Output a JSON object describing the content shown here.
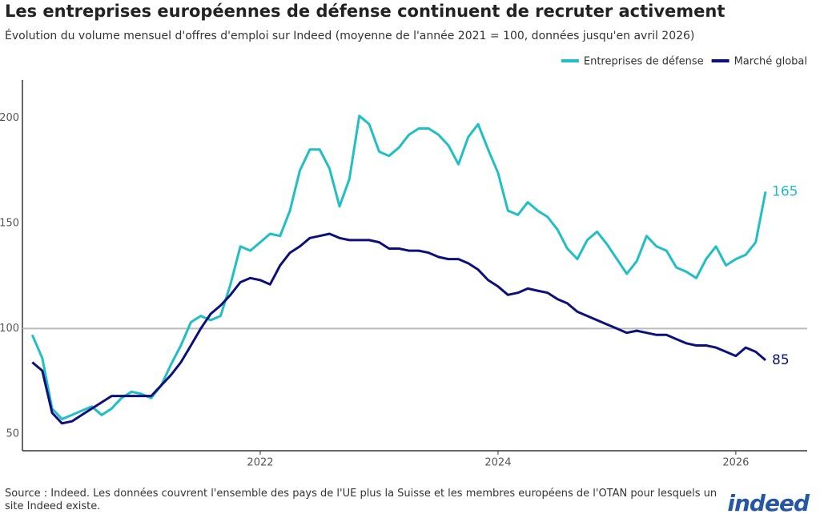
{
  "chart_data": {
    "type": "line",
    "title": "Les entreprises européennes de défense continuent de recruter activement",
    "subtitle": "Évolution du volume mensuel d'offres d'emploi sur Indeed (moyenne de l'année 2021 = 100, données jusqu'en avril 2026)",
    "source": "Source : Indeed. Les données couvrent l'ensemble des pays de l'UE plus la Suisse et les membres européens de l'OTAN pour lesquels un site Indeed existe.",
    "logo": "indeed",
    "x": [
      2020.083,
      2020.167,
      2020.25,
      2020.333,
      2020.417,
      2020.5,
      2020.583,
      2020.667,
      2020.75,
      2020.833,
      2020.917,
      2021.0,
      2021.083,
      2021.167,
      2021.25,
      2021.333,
      2021.417,
      2021.5,
      2021.583,
      2021.667,
      2021.75,
      2021.833,
      2021.917,
      2022.0,
      2022.083,
      2022.167,
      2022.25,
      2022.333,
      2022.417,
      2022.5,
      2022.583,
      2022.667,
      2022.75,
      2022.833,
      2022.917,
      2023.0,
      2023.083,
      2023.167,
      2023.25,
      2023.333,
      2023.417,
      2023.5,
      2023.583,
      2023.667,
      2023.75,
      2023.833,
      2023.917,
      2024.0,
      2024.083,
      2024.167,
      2024.25,
      2024.333,
      2024.417,
      2024.5,
      2024.583,
      2024.667,
      2024.75,
      2024.833,
      2024.917,
      2025.0,
      2025.083,
      2025.167,
      2025.25,
      2025.333,
      2025.417,
      2025.5,
      2025.583,
      2025.667,
      2025.75,
      2025.833,
      2025.917,
      2026.0,
      2026.083,
      2026.167,
      2026.25
    ],
    "series": [
      {
        "name": "Entreprises de défense",
        "color": "#1fbfc4",
        "values": [
          97,
          86,
          62,
          57,
          59,
          61,
          63,
          59,
          62,
          67,
          70,
          69,
          67,
          73,
          83,
          92,
          103,
          106,
          104,
          106,
          121,
          139,
          137,
          141,
          145,
          144,
          156,
          175,
          185,
          185,
          176,
          158,
          171,
          201,
          197,
          184,
          182,
          186,
          192,
          195,
          195,
          192,
          187,
          178,
          191,
          197,
          185,
          174,
          156,
          154,
          160,
          156,
          153,
          147,
          138,
          133,
          142,
          146,
          140,
          133,
          126,
          132,
          144,
          139,
          137,
          129,
          127,
          124,
          133,
          139,
          130,
          133,
          135,
          141,
          165
        ]
      },
      {
        "name": "Marché global",
        "color": "#0d0f7a",
        "values": [
          84,
          80,
          60,
          55,
          56,
          59,
          62,
          65,
          68,
          68,
          68,
          68,
          68,
          73,
          78,
          84,
          92,
          100,
          107,
          111,
          116,
          122,
          124,
          123,
          121,
          130,
          136,
          139,
          143,
          144,
          145,
          143,
          142,
          142,
          142,
          141,
          138,
          138,
          137,
          137,
          136,
          134,
          133,
          133,
          131,
          128,
          123,
          120,
          116,
          117,
          119,
          118,
          117,
          114,
          112,
          108,
          106,
          104,
          102,
          100,
          98,
          99,
          98,
          97,
          97,
          95,
          93,
          92,
          92,
          91,
          89,
          87,
          91,
          89,
          85
        ]
      }
    ],
    "xlim": [
      2020,
      2026.6
    ],
    "xticks": [
      2022,
      2024,
      2026
    ],
    "ylim": [
      42,
      218
    ],
    "yticks": [
      50,
      100,
      150,
      200
    ],
    "reference_line": 100,
    "legend": "top-right"
  }
}
